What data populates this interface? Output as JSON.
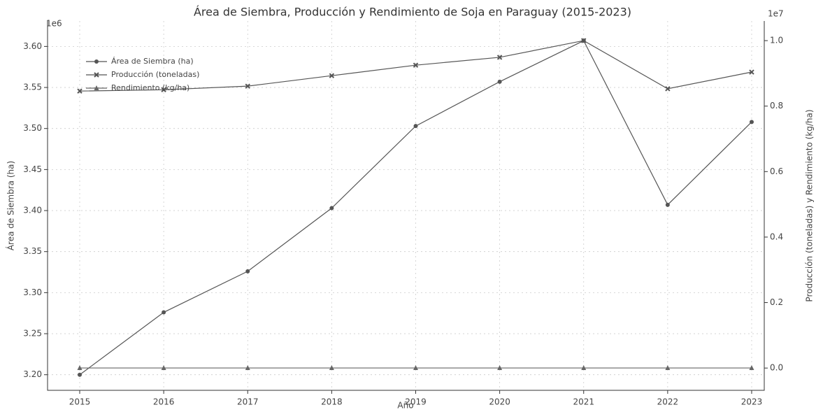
{
  "chart_data": {
    "type": "line",
    "title": "Área de Siembra, Producción y Rendimiento de Soja en Paraguay (2015-2023)",
    "x_label": "Año",
    "y_label": "Área de Siembra (ha)",
    "y2_label": "Producción (toneladas) y Rendimiento (kg/ha)",
    "y_offset_label": "1e6",
    "y2_offset_label": "1e7",
    "x": [
      2015,
      2016,
      2017,
      2018,
      2019,
      2020,
      2021,
      2022,
      2023
    ],
    "xlim": [
      2014.617,
      2023.15
    ],
    "xticks": [
      2015,
      2016,
      2017,
      2018,
      2019,
      2020,
      2021,
      2022,
      2023
    ],
    "ylim": [
      3181000,
      3631000
    ],
    "yticks": [
      {
        "value": 3200000,
        "label": "3.20"
      },
      {
        "value": 3250000,
        "label": "3.25"
      },
      {
        "value": 3300000,
        "label": "3.30"
      },
      {
        "value": 3350000,
        "label": "3.35"
      },
      {
        "value": 3400000,
        "label": "3.40"
      },
      {
        "value": 3450000,
        "label": "3.45"
      },
      {
        "value": 3500000,
        "label": "3.50"
      },
      {
        "value": 3550000,
        "label": "3.55"
      },
      {
        "value": 3600000,
        "label": "3.60"
      }
    ],
    "y2lim": [
      -680000,
      10600000
    ],
    "y2ticks": [
      {
        "value": 0,
        "label": "0.0"
      },
      {
        "value": 2000000,
        "label": "0.2"
      },
      {
        "value": 4000000,
        "label": "0.4"
      },
      {
        "value": 6000000,
        "label": "0.6"
      },
      {
        "value": 8000000,
        "label": "0.8"
      },
      {
        "value": 10000000,
        "label": "1.0"
      }
    ],
    "grid": true,
    "legend": "upper left",
    "series": [
      {
        "name": "Área de Siembra (ha)",
        "color": "#555555",
        "marker": "o",
        "axis": "y",
        "values": [
          3200000,
          3276000,
          3326000,
          3403000,
          3503000,
          3557000,
          3607000,
          3407000,
          3508000
        ]
      },
      {
        "name": "Producción (toneladas)",
        "color": "#555555",
        "marker": "x",
        "axis": "y2",
        "values": [
          8460000,
          8500000,
          8610000,
          8930000,
          9250000,
          9490000,
          10000000,
          8530000,
          9040000
        ]
      },
      {
        "name": "Rendimiento (kg/ha)",
        "color": "#666666",
        "marker": "^",
        "axis": "y2",
        "values": [
          2640,
          2600,
          2590,
          2620,
          2640,
          2610,
          2770,
          2500,
          2590
        ]
      }
    ]
  }
}
